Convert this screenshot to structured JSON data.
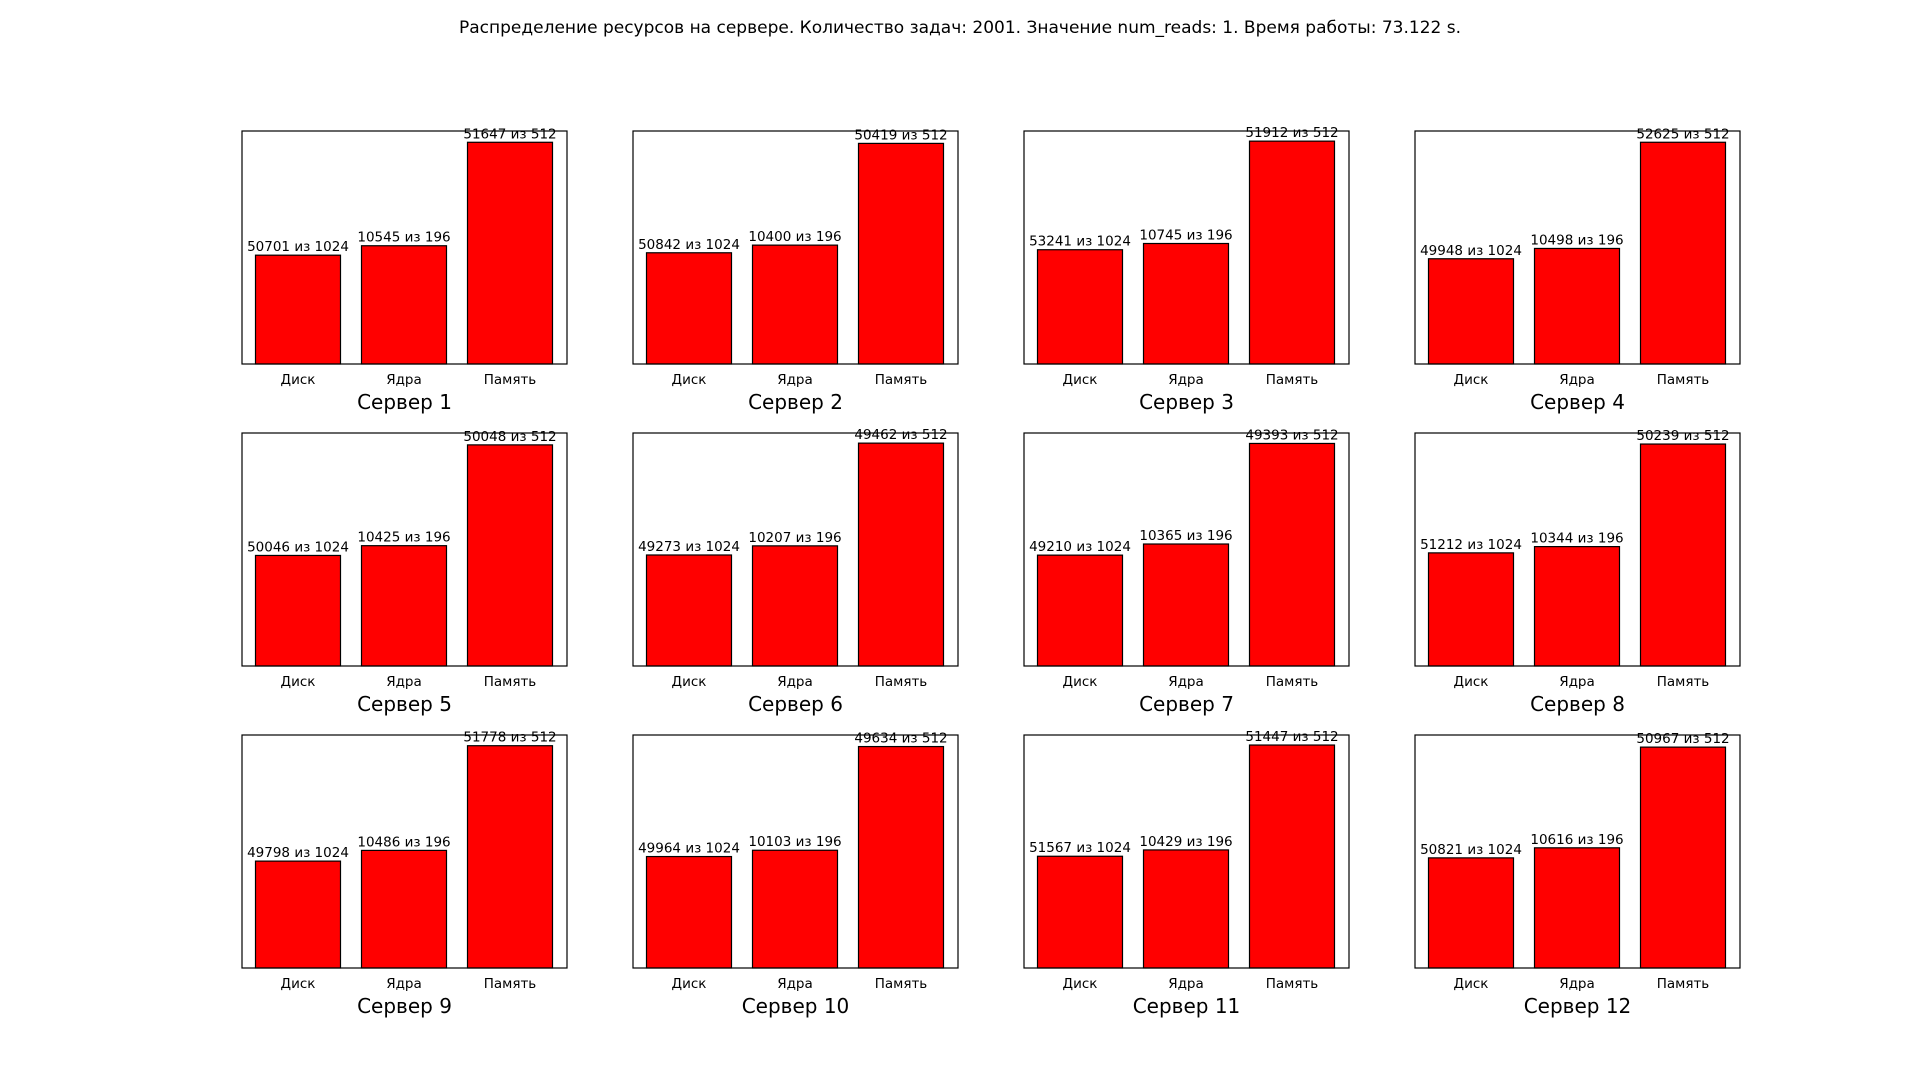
{
  "title": "Распределение ресурсов на сервере. Количество задач: 2001. Значение num_reads: 1. Время работы: 73.122 s.",
  "chart_data": [
    {
      "type": "bar",
      "title": "Сервер 1",
      "categories": [
        "Диск",
        "Ядра",
        "Память"
      ],
      "values": [
        49.51,
        53.8,
        100.87
      ],
      "labels": [
        "50701 из 1024",
        "10545 из 196",
        "51647 из 512"
      ],
      "ylim": [
        0,
        106
      ],
      "bar_color": "#ff0000"
    },
    {
      "type": "bar",
      "title": "Сервер 2",
      "categories": [
        "Диск",
        "Ядра",
        "Память"
      ],
      "values": [
        49.65,
        53.06,
        98.47
      ],
      "labels": [
        "50842 из 1024",
        "10400 из 196",
        "50419 из 512"
      ],
      "ylim": [
        0,
        104
      ],
      "bar_color": "#ff0000"
    },
    {
      "type": "bar",
      "title": "Сервер 3",
      "categories": [
        "Диск",
        "Ядра",
        "Память"
      ],
      "values": [
        51.99,
        54.82,
        101.39
      ],
      "labels": [
        "53241 из 1024",
        "10745 из 196",
        "51912 из 512"
      ],
      "ylim": [
        0,
        106
      ],
      "bar_color": "#ff0000"
    },
    {
      "type": "bar",
      "title": "Сервер 4",
      "categories": [
        "Диск",
        "Ядра",
        "Память"
      ],
      "values": [
        48.78,
        53.56,
        102.78
      ],
      "labels": [
        "49948 из 1024",
        "10498 из 196",
        "52625 из 512"
      ],
      "ylim": [
        0,
        108
      ],
      "bar_color": "#ff0000"
    },
    {
      "type": "bar",
      "title": "Сервер 5",
      "categories": [
        "Диск",
        "Ядра",
        "Память"
      ],
      "values": [
        48.87,
        53.19,
        97.75
      ],
      "labels": [
        "50046 из 1024",
        "10425 из 196",
        "50048 из 512"
      ],
      "ylim": [
        0,
        103
      ],
      "bar_color": "#ff0000"
    },
    {
      "type": "bar",
      "title": "Сервер 6",
      "categories": [
        "Диск",
        "Ядра",
        "Память"
      ],
      "values": [
        48.12,
        52.08,
        96.61
      ],
      "labels": [
        "49273 из 1024",
        "10207 из 196",
        "49462 из 512"
      ],
      "ylim": [
        0,
        101
      ],
      "bar_color": "#ff0000"
    },
    {
      "type": "bar",
      "title": "Сервер 7",
      "categories": [
        "Диск",
        "Ядра",
        "Память"
      ],
      "values": [
        48.06,
        52.88,
        96.47
      ],
      "labels": [
        "49210 из 1024",
        "10365 из 196",
        "49393 из 512"
      ],
      "ylim": [
        0,
        101
      ],
      "bar_color": "#ff0000"
    },
    {
      "type": "bar",
      "title": "Сервер 8",
      "categories": [
        "Диск",
        "Ядра",
        "Память"
      ],
      "values": [
        50.01,
        52.78,
        98.12
      ],
      "labels": [
        "51212 из 1024",
        "10344 из 196",
        "50239 из 512"
      ],
      "ylim": [
        0,
        103
      ],
      "bar_color": "#ff0000"
    },
    {
      "type": "bar",
      "title": "Сервер 9",
      "categories": [
        "Диск",
        "Ядра",
        "Память"
      ],
      "values": [
        48.63,
        53.5,
        101.13
      ],
      "labels": [
        "49798 из 1024",
        "10486 из 196",
        "51778 из 512"
      ],
      "ylim": [
        0,
        106
      ],
      "bar_color": "#ff0000"
    },
    {
      "type": "bar",
      "title": "Сервер 10",
      "categories": [
        "Диск",
        "Ядра",
        "Память"
      ],
      "values": [
        48.79,
        51.55,
        96.94
      ],
      "labels": [
        "49964 из 1024",
        "10103 из 196",
        "49634 из 512"
      ],
      "ylim": [
        0,
        102
      ],
      "bar_color": "#ff0000"
    },
    {
      "type": "bar",
      "title": "Сервер 11",
      "categories": [
        "Диск",
        "Ядра",
        "Память"
      ],
      "values": [
        50.36,
        53.21,
        100.48
      ],
      "labels": [
        "51567 из 1024",
        "10429 из 196",
        "51447 из 512"
      ],
      "ylim": [
        0,
        105
      ],
      "bar_color": "#ff0000"
    },
    {
      "type": "bar",
      "title": "Сервер 12",
      "categories": [
        "Диск",
        "Ядра",
        "Память"
      ],
      "values": [
        49.63,
        54.16,
        99.54
      ],
      "labels": [
        "50821 из 1024",
        "10616 из 196",
        "50967 из 512"
      ],
      "ylim": [
        0,
        105
      ],
      "bar_color": "#ff0000"
    }
  ]
}
